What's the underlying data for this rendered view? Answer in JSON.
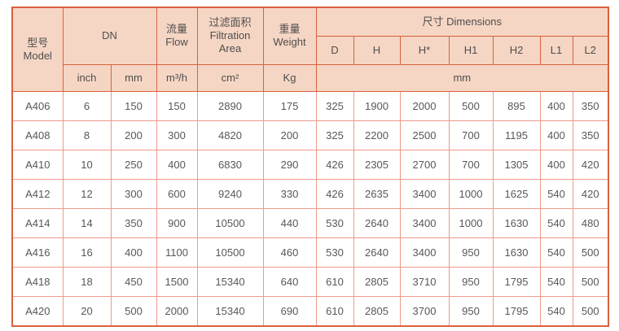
{
  "table": {
    "header": {
      "model_cn": "型号",
      "model_en": "Model",
      "dn": "DN",
      "flow_cn": "流量",
      "flow_en": "Flow",
      "filtration_cn": "过滤面积",
      "filtration_en_line1": "Filtration",
      "filtration_en_line2": "Area",
      "weight_cn": "重量",
      "weight_en": "Weight",
      "dimensions_title": "尺寸 Dimensions",
      "dim_cols": [
        "D",
        "H",
        "H*",
        "H1",
        "H2",
        "L1",
        "L2"
      ],
      "unit_inch": "inch",
      "unit_mm": "mm",
      "unit_flow": "m³/h",
      "unit_area": "cm²",
      "unit_weight": "Kg",
      "unit_dims": "mm"
    },
    "rows": [
      {
        "cells": [
          "A406",
          "6",
          "150",
          "150",
          "2890",
          "175",
          "325",
          "1900",
          "2000",
          "500",
          "895",
          "400",
          "350"
        ]
      },
      {
        "cells": [
          "A408",
          "8",
          "200",
          "300",
          "4820",
          "200",
          "325",
          "2200",
          "2500",
          "700",
          "1195",
          "400",
          "350"
        ]
      },
      {
        "cells": [
          "A410",
          "10",
          "250",
          "400",
          "6830",
          "290",
          "426",
          "2305",
          "2700",
          "700",
          "1305",
          "400",
          "420"
        ]
      },
      {
        "cells": [
          "A412",
          "12",
          "300",
          "600",
          "9240",
          "330",
          "426",
          "2635",
          "3400",
          "1000",
          "1625",
          "540",
          "420"
        ]
      },
      {
        "cells": [
          "A414",
          "14",
          "350",
          "900",
          "10500",
          "440",
          "530",
          "2640",
          "3400",
          "1000",
          "1630",
          "540",
          "480"
        ]
      },
      {
        "cells": [
          "A416",
          "16",
          "400",
          "1100",
          "10500",
          "460",
          "530",
          "2640",
          "3400",
          "950",
          "1630",
          "540",
          "500"
        ]
      },
      {
        "cells": [
          "A418",
          "18",
          "450",
          "1500",
          "15340",
          "640",
          "610",
          "2805",
          "3710",
          "950",
          "1795",
          "540",
          "500"
        ]
      },
      {
        "cells": [
          "A420",
          "20",
          "500",
          "2000",
          "15340",
          "690",
          "610",
          "2805",
          "3700",
          "950",
          "1795",
          "540",
          "500"
        ]
      }
    ],
    "colors": {
      "header_bg": "#f5d6c4",
      "header_border": "#d9613f",
      "grid_border": "#f09a8a",
      "text": "#595757"
    }
  }
}
